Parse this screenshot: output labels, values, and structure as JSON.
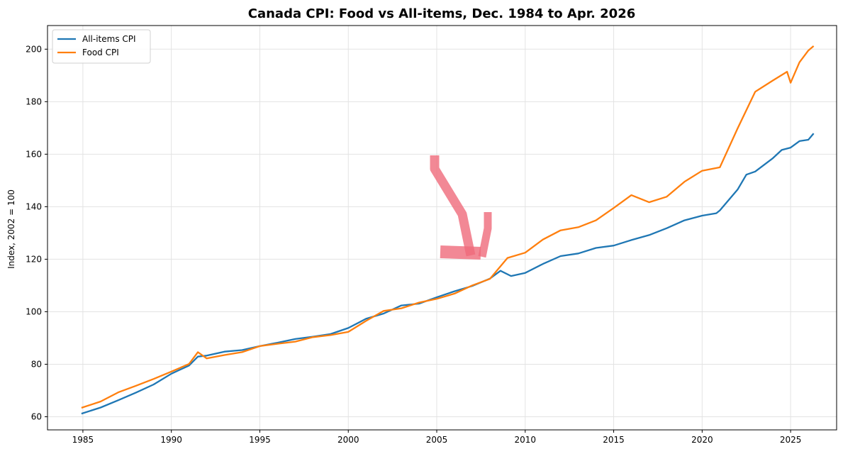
{
  "chart_data": {
    "type": "line",
    "title": "Canada CPI: Food vs All-items, Dec. 1984 to Apr. 2026",
    "xlabel": "",
    "ylabel": "Index, 2002 = 100",
    "xlim": [
      1983.0,
      2027.6
    ],
    "ylim": [
      55,
      209
    ],
    "xticks": [
      1985,
      1990,
      1995,
      2000,
      2005,
      2010,
      2015,
      2020,
      2025
    ],
    "yticks": [
      60,
      80,
      100,
      120,
      140,
      160,
      180,
      200
    ],
    "grid": true,
    "legend": "top-left",
    "series": [
      {
        "name": "All-items CPI",
        "color": "#1f77b4",
        "points": [
          [
            1984.92,
            61.2
          ],
          [
            1986.0,
            63.5
          ],
          [
            1987.0,
            66.3
          ],
          [
            1988.0,
            69.2
          ],
          [
            1989.0,
            72.3
          ],
          [
            1990.0,
            76.4
          ],
          [
            1991.0,
            79.5
          ],
          [
            1991.5,
            82.9
          ],
          [
            1992.0,
            83.3
          ],
          [
            1993.0,
            84.8
          ],
          [
            1994.0,
            85.4
          ],
          [
            1995.0,
            86.9
          ],
          [
            1996.0,
            88.2
          ],
          [
            1997.0,
            89.6
          ],
          [
            1998.0,
            90.5
          ],
          [
            1999.0,
            91.5
          ],
          [
            2000.0,
            93.8
          ],
          [
            2001.0,
            97.3
          ],
          [
            2002.0,
            99.3
          ],
          [
            2003.0,
            102.4
          ],
          [
            2004.0,
            103.1
          ],
          [
            2005.0,
            105.5
          ],
          [
            2006.0,
            107.8
          ],
          [
            2007.0,
            109.8
          ],
          [
            2008.0,
            112.6
          ],
          [
            2008.6,
            115.6
          ],
          [
            2009.2,
            113.6
          ],
          [
            2010.0,
            114.8
          ],
          [
            2011.0,
            118.2
          ],
          [
            2012.0,
            121.2
          ],
          [
            2013.0,
            122.2
          ],
          [
            2014.0,
            124.3
          ],
          [
            2015.0,
            125.2
          ],
          [
            2016.0,
            127.3
          ],
          [
            2017.0,
            129.2
          ],
          [
            2018.0,
            131.8
          ],
          [
            2019.0,
            134.8
          ],
          [
            2020.0,
            136.6
          ],
          [
            2020.8,
            137.5
          ],
          [
            2021.0,
            138.6
          ],
          [
            2022.0,
            146.5
          ],
          [
            2022.5,
            152.2
          ],
          [
            2023.0,
            153.4
          ],
          [
            2024.0,
            158.5
          ],
          [
            2024.5,
            161.6
          ],
          [
            2025.0,
            162.5
          ],
          [
            2025.5,
            165.0
          ],
          [
            2026.0,
            165.5
          ],
          [
            2026.3,
            167.9
          ]
        ]
      },
      {
        "name": "Food CPI",
        "color": "#ff7f0e",
        "points": [
          [
            1984.92,
            63.4
          ],
          [
            1986.0,
            65.8
          ],
          [
            1987.0,
            69.3
          ],
          [
            1988.0,
            71.8
          ],
          [
            1989.0,
            74.4
          ],
          [
            1990.0,
            77.2
          ],
          [
            1991.0,
            80.1
          ],
          [
            1991.5,
            84.6
          ],
          [
            1992.0,
            82.2
          ],
          [
            1993.0,
            83.5
          ],
          [
            1994.0,
            84.6
          ],
          [
            1995.0,
            86.9
          ],
          [
            1996.0,
            87.8
          ],
          [
            1997.0,
            88.6
          ],
          [
            1998.0,
            90.3
          ],
          [
            1999.0,
            91.1
          ],
          [
            2000.0,
            92.3
          ],
          [
            2001.0,
            96.5
          ],
          [
            2002.0,
            100.3
          ],
          [
            2003.0,
            101.3
          ],
          [
            2004.0,
            103.5
          ],
          [
            2005.0,
            104.9
          ],
          [
            2006.0,
            106.9
          ],
          [
            2007.0,
            110.0
          ],
          [
            2008.0,
            112.5
          ],
          [
            2009.0,
            120.5
          ],
          [
            2010.0,
            122.5
          ],
          [
            2011.0,
            127.5
          ],
          [
            2012.0,
            131.0
          ],
          [
            2013.0,
            132.2
          ],
          [
            2014.0,
            134.8
          ],
          [
            2015.0,
            139.5
          ],
          [
            2016.0,
            144.4
          ],
          [
            2017.0,
            141.7
          ],
          [
            2018.0,
            143.8
          ],
          [
            2019.0,
            149.5
          ],
          [
            2020.0,
            153.7
          ],
          [
            2021.0,
            155.0
          ],
          [
            2022.0,
            169.8
          ],
          [
            2023.0,
            183.8
          ],
          [
            2024.0,
            188.1
          ],
          [
            2024.8,
            191.4
          ],
          [
            2025.0,
            187.2
          ],
          [
            2025.5,
            195.0
          ],
          [
            2026.0,
            199.5
          ],
          [
            2026.3,
            201.2
          ]
        ]
      }
    ]
  }
}
